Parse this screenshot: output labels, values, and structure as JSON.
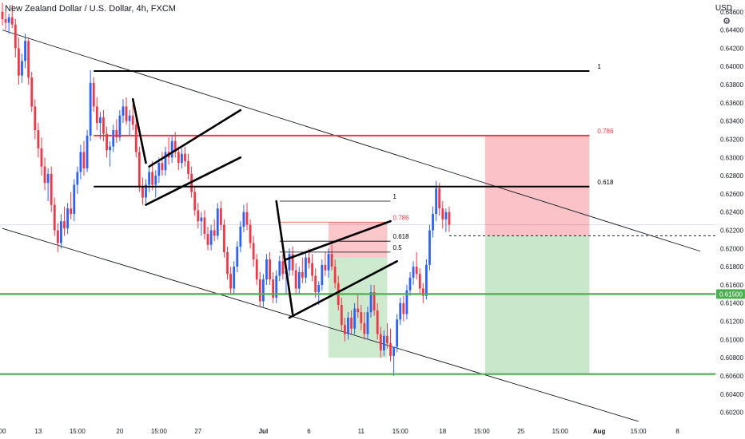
{
  "header": {
    "title": "New Zealand Dollar / U.S. Dollar, 4h, FXCM",
    "currency": "USD"
  },
  "chart_data": {
    "type": "candlestick",
    "symbol": "NZDUSD",
    "timeframe": "4h",
    "ylim": [
      0.601,
      0.6473
    ],
    "y_ticks": [
      0.602,
      0.604,
      0.606,
      0.608,
      0.61,
      0.612,
      0.614,
      0.616,
      0.618,
      0.62,
      0.622,
      0.624,
      0.626,
      0.628,
      0.63,
      0.632,
      0.634,
      0.636,
      0.638,
      0.64,
      0.642,
      0.644,
      0.646
    ],
    "y_tick_labels": [
      "0.60200",
      "0.60400",
      "0.60600",
      "0.60800",
      "0.61000",
      "0.61200",
      "0.61400",
      "0.61600",
      "0.61800",
      "0.62000",
      "0.62200",
      "0.62400",
      "0.62600",
      "0.62800",
      "0.63000",
      "0.63200",
      "0.63400",
      "0.63600",
      "0.63800",
      "0.64000",
      "0.64200",
      "0.64400",
      "0.64600"
    ],
    "price_tag": {
      "label": "0.61500",
      "value": 0.615,
      "color": "#4caf50"
    },
    "x_labels": [
      {
        "text": "00",
        "i": 0
      },
      {
        "text": "13",
        "i": 11
      },
      {
        "text": "15:00",
        "i": 23
      },
      {
        "text": "20",
        "i": 36
      },
      {
        "text": "15:00",
        "i": 48
      },
      {
        "text": "27",
        "i": 60
      },
      {
        "text": "Jul",
        "i": 80
      },
      {
        "text": "6",
        "i": 94
      },
      {
        "text": "11",
        "i": 110
      },
      {
        "text": "15:00",
        "i": 122
      },
      {
        "text": "18",
        "i": 135
      },
      {
        "text": "15:00",
        "i": 147
      },
      {
        "text": "25",
        "i": 159
      },
      {
        "text": "15:00",
        "i": 171
      },
      {
        "text": "Aug",
        "i": 183
      },
      {
        "text": "15:00",
        "i": 195
      },
      {
        "text": "8",
        "i": 207
      }
    ],
    "candles": [
      [
        0.646,
        0.647,
        0.6445,
        0.6452
      ],
      [
        0.6452,
        0.6462,
        0.644,
        0.6448
      ],
      [
        0.6448,
        0.6458,
        0.6436,
        0.6454
      ],
      [
        0.6454,
        0.6468,
        0.6442,
        0.6446
      ],
      [
        0.6446,
        0.6452,
        0.641,
        0.642
      ],
      [
        0.642,
        0.6432,
        0.638,
        0.639
      ],
      [
        0.639,
        0.6414,
        0.6382,
        0.6406
      ],
      [
        0.6406,
        0.6436,
        0.6398,
        0.6428
      ],
      [
        0.6428,
        0.6432,
        0.638,
        0.6388
      ],
      [
        0.6388,
        0.6394,
        0.635,
        0.6356
      ],
      [
        0.6356,
        0.6364,
        0.632,
        0.633
      ],
      [
        0.633,
        0.6338,
        0.63,
        0.631
      ],
      [
        0.631,
        0.6322,
        0.628,
        0.629
      ],
      [
        0.629,
        0.63,
        0.6264,
        0.6272
      ],
      [
        0.6272,
        0.6288,
        0.6252,
        0.6282
      ],
      [
        0.6282,
        0.629,
        0.624,
        0.6248
      ],
      [
        0.6248,
        0.6256,
        0.6214,
        0.622
      ],
      [
        0.622,
        0.6228,
        0.6196,
        0.6206
      ],
      [
        0.6206,
        0.6238,
        0.62,
        0.623
      ],
      [
        0.623,
        0.6246,
        0.6214,
        0.6222
      ],
      [
        0.6222,
        0.625,
        0.6216,
        0.6244
      ],
      [
        0.6244,
        0.6262,
        0.6232,
        0.6238
      ],
      [
        0.6238,
        0.6276,
        0.623,
        0.627
      ],
      [
        0.627,
        0.629,
        0.626,
        0.6284
      ],
      [
        0.6284,
        0.6314,
        0.6276,
        0.6306
      ],
      [
        0.6306,
        0.6318,
        0.628,
        0.6288
      ],
      [
        0.6288,
        0.633,
        0.6284,
        0.6324
      ],
      [
        0.6324,
        0.6396,
        0.6318,
        0.6382
      ],
      [
        0.6382,
        0.6388,
        0.635,
        0.6356
      ],
      [
        0.6356,
        0.6366,
        0.633,
        0.6338
      ],
      [
        0.6338,
        0.635,
        0.632,
        0.6344
      ],
      [
        0.6344,
        0.6352,
        0.6318,
        0.6326
      ],
      [
        0.6326,
        0.6334,
        0.63,
        0.6308
      ],
      [
        0.6308,
        0.6318,
        0.629,
        0.6312
      ],
      [
        0.6312,
        0.6336,
        0.6306,
        0.633
      ],
      [
        0.633,
        0.6342,
        0.6316,
        0.6322
      ],
      [
        0.6322,
        0.6352,
        0.6318,
        0.6346
      ],
      [
        0.6346,
        0.6364,
        0.6338,
        0.6356
      ],
      [
        0.6356,
        0.6366,
        0.6336,
        0.634
      ],
      [
        0.634,
        0.6352,
        0.6324,
        0.6346
      ],
      [
        0.6346,
        0.6358,
        0.633,
        0.6336
      ],
      [
        0.6336,
        0.6344,
        0.63,
        0.6306
      ],
      [
        0.6306,
        0.6312,
        0.6262,
        0.6268
      ],
      [
        0.6268,
        0.6278,
        0.6248,
        0.6256
      ],
      [
        0.6256,
        0.6276,
        0.625,
        0.627
      ],
      [
        0.627,
        0.629,
        0.6262,
        0.6284
      ],
      [
        0.6284,
        0.6296,
        0.6264,
        0.627
      ],
      [
        0.627,
        0.6286,
        0.6256,
        0.628
      ],
      [
        0.628,
        0.63,
        0.6272,
        0.6294
      ],
      [
        0.6294,
        0.6306,
        0.628,
        0.6286
      ],
      [
        0.6286,
        0.6312,
        0.628,
        0.6306
      ],
      [
        0.6306,
        0.6322,
        0.6292,
        0.63
      ],
      [
        0.63,
        0.6324,
        0.6294,
        0.6318
      ],
      [
        0.6318,
        0.6328,
        0.63,
        0.6306
      ],
      [
        0.6306,
        0.6312,
        0.6286,
        0.6294
      ],
      [
        0.6294,
        0.631,
        0.6288,
        0.6304
      ],
      [
        0.6304,
        0.6312,
        0.629,
        0.6296
      ],
      [
        0.6296,
        0.6304,
        0.6276,
        0.6282
      ],
      [
        0.6282,
        0.629,
        0.6256,
        0.6262
      ],
      [
        0.6262,
        0.6268,
        0.6236,
        0.6242
      ],
      [
        0.6242,
        0.625,
        0.6222,
        0.623
      ],
      [
        0.623,
        0.624,
        0.6214,
        0.6234
      ],
      [
        0.6234,
        0.6242,
        0.621,
        0.6216
      ],
      [
        0.6216,
        0.6224,
        0.6198,
        0.6204
      ],
      [
        0.6204,
        0.6226,
        0.6198,
        0.622
      ],
      [
        0.622,
        0.6232,
        0.6208,
        0.6214
      ],
      [
        0.6214,
        0.625,
        0.621,
        0.6244
      ],
      [
        0.6244,
        0.6252,
        0.622,
        0.6226
      ],
      [
        0.6226,
        0.6232,
        0.619,
        0.6196
      ],
      [
        0.6196,
        0.6202,
        0.6166,
        0.6172
      ],
      [
        0.6172,
        0.618,
        0.615,
        0.6156
      ],
      [
        0.6156,
        0.6186,
        0.615,
        0.618
      ],
      [
        0.618,
        0.6208,
        0.6174,
        0.6202
      ],
      [
        0.6202,
        0.623,
        0.6196,
        0.6224
      ],
      [
        0.6224,
        0.6248,
        0.6218,
        0.624
      ],
      [
        0.624,
        0.625,
        0.622,
        0.6226
      ],
      [
        0.6226,
        0.6232,
        0.62,
        0.6206
      ],
      [
        0.6206,
        0.6214,
        0.618,
        0.6188
      ],
      [
        0.6188,
        0.6194,
        0.616,
        0.6166
      ],
      [
        0.6166,
        0.6174,
        0.6136,
        0.6142
      ],
      [
        0.6142,
        0.6172,
        0.6136,
        0.6166
      ],
      [
        0.6166,
        0.6194,
        0.616,
        0.6188
      ],
      [
        0.6188,
        0.6196,
        0.616,
        0.6166
      ],
      [
        0.6166,
        0.6174,
        0.614,
        0.6146
      ],
      [
        0.6146,
        0.6176,
        0.614,
        0.617
      ],
      [
        0.617,
        0.6192,
        0.6164,
        0.6186
      ],
      [
        0.6186,
        0.6194,
        0.6166,
        0.6172
      ],
      [
        0.6172,
        0.6182,
        0.615,
        0.6176
      ],
      [
        0.6176,
        0.62,
        0.617,
        0.6194
      ],
      [
        0.6194,
        0.6202,
        0.617,
        0.6176
      ],
      [
        0.6176,
        0.6184,
        0.615,
        0.6156
      ],
      [
        0.6156,
        0.618,
        0.615,
        0.6174
      ],
      [
        0.6174,
        0.619,
        0.6162,
        0.6168
      ],
      [
        0.6168,
        0.6196,
        0.6162,
        0.619
      ],
      [
        0.619,
        0.62,
        0.6178,
        0.6184
      ],
      [
        0.6184,
        0.6194,
        0.6164,
        0.617
      ],
      [
        0.617,
        0.6178,
        0.6146,
        0.6152
      ],
      [
        0.6152,
        0.6164,
        0.6138,
        0.616
      ],
      [
        0.616,
        0.6188,
        0.6154,
        0.6182
      ],
      [
        0.6182,
        0.6196,
        0.617,
        0.6176
      ],
      [
        0.6176,
        0.62,
        0.6168,
        0.6194
      ],
      [
        0.6194,
        0.6204,
        0.6176,
        0.618
      ],
      [
        0.618,
        0.6188,
        0.6156,
        0.6162
      ],
      [
        0.6162,
        0.617,
        0.6132,
        0.6138
      ],
      [
        0.6138,
        0.6146,
        0.611,
        0.6116
      ],
      [
        0.6116,
        0.6124,
        0.6098,
        0.6106
      ],
      [
        0.6106,
        0.613,
        0.61,
        0.6124
      ],
      [
        0.6124,
        0.6132,
        0.6106,
        0.6112
      ],
      [
        0.6112,
        0.614,
        0.6106,
        0.6134
      ],
      [
        0.6134,
        0.615,
        0.6124,
        0.613
      ],
      [
        0.613,
        0.6138,
        0.611,
        0.6118
      ],
      [
        0.6118,
        0.613,
        0.61,
        0.6106
      ],
      [
        0.6106,
        0.6136,
        0.61,
        0.613
      ],
      [
        0.613,
        0.616,
        0.6124,
        0.6152
      ],
      [
        0.6152,
        0.616,
        0.6126,
        0.6132
      ],
      [
        0.6132,
        0.614,
        0.61,
        0.6106
      ],
      [
        0.6106,
        0.6114,
        0.608,
        0.6088
      ],
      [
        0.6088,
        0.611,
        0.6082,
        0.6104
      ],
      [
        0.6104,
        0.6118,
        0.609,
        0.6096
      ],
      [
        0.6096,
        0.6112,
        0.6076,
        0.6082
      ],
      [
        0.6082,
        0.609,
        0.606,
        0.6092
      ],
      [
        0.6092,
        0.6128,
        0.6086,
        0.6122
      ],
      [
        0.6122,
        0.6146,
        0.6116,
        0.614
      ],
      [
        0.614,
        0.6148,
        0.612,
        0.6128
      ],
      [
        0.6128,
        0.616,
        0.6122,
        0.6154
      ],
      [
        0.6154,
        0.6174,
        0.6148,
        0.6168
      ],
      [
        0.6168,
        0.6186,
        0.616,
        0.618
      ],
      [
        0.618,
        0.6196,
        0.6166,
        0.6172
      ],
      [
        0.6172,
        0.6178,
        0.615,
        0.6156
      ],
      [
        0.6156,
        0.6162,
        0.614,
        0.6148
      ],
      [
        0.6148,
        0.6188,
        0.6144,
        0.6182
      ],
      [
        0.6182,
        0.6226,
        0.6176,
        0.622
      ],
      [
        0.622,
        0.6246,
        0.6212,
        0.6238
      ],
      [
        0.6238,
        0.6274,
        0.623,
        0.6266
      ],
      [
        0.6266,
        0.6272,
        0.6236,
        0.6244
      ],
      [
        0.6244,
        0.6252,
        0.6222,
        0.6232
      ],
      [
        0.6232,
        0.6244,
        0.6218,
        0.624
      ],
      [
        0.624,
        0.6246,
        0.6218,
        0.6226
      ]
    ],
    "annotations": {
      "channel": [
        {
          "from": [
            0,
            0.644
          ],
          "to": [
            214,
            0.6197
          ]
        },
        {
          "from": [
            0,
            0.6222
          ],
          "to": [
            196,
            0.6009
          ]
        }
      ],
      "big_fib": [
        {
          "label": "1",
          "value": 0.6395,
          "from": 28,
          "to": 180,
          "color": "#000000"
        },
        {
          "label": "0.786",
          "value": 0.6324,
          "from": 28,
          "to": 180,
          "color": "#f23645"
        },
        {
          "label": "0.618",
          "value": 0.6268,
          "from": 28,
          "to": 180,
          "color": "#000000"
        }
      ],
      "small_fib": [
        {
          "label": "1",
          "value": 0.6252,
          "from": 85,
          "to": 119,
          "color": "#000000"
        },
        {
          "label": "0.786",
          "value": 0.6229,
          "from": 85,
          "to": 119,
          "color": "#f23645"
        },
        {
          "label": "0.618",
          "value": 0.6208,
          "from": 85,
          "to": 119,
          "color": "#000000"
        },
        {
          "label": "0.5",
          "value": 0.6196,
          "from": 85,
          "to": 119,
          "color": "#000000"
        }
      ],
      "support_lines": [
        {
          "value": 0.615,
          "color": "#4caf50"
        },
        {
          "value": 0.6062,
          "color": "#4caf50"
        }
      ],
      "short_position": {
        "from": 148,
        "to": 180,
        "stop": 0.6324,
        "entry": 0.6214,
        "target": 0.6062
      },
      "small_position": {
        "from": 100,
        "to": 118,
        "stop": 0.6229,
        "entry": 0.619,
        "target": 0.608
      },
      "flags": [
        {
          "pole": [
            [
              40,
              0.6364
            ],
            [
              44,
              0.6294
            ]
          ],
          "lower": [
            [
              44,
              0.6248
            ],
            [
              73,
              0.63
            ]
          ],
          "upper": [
            [
              45,
              0.629
            ],
            [
              73,
              0.6352
            ]
          ]
        },
        {
          "pole": [
            [
              84,
              0.6252
            ],
            [
              89,
              0.6128
            ]
          ],
          "lower": [
            [
              88,
              0.6124
            ],
            [
              121,
              0.6186
            ]
          ],
          "upper": [
            [
              87,
              0.6188
            ],
            [
              119,
              0.623
            ]
          ]
        }
      ]
    }
  }
}
